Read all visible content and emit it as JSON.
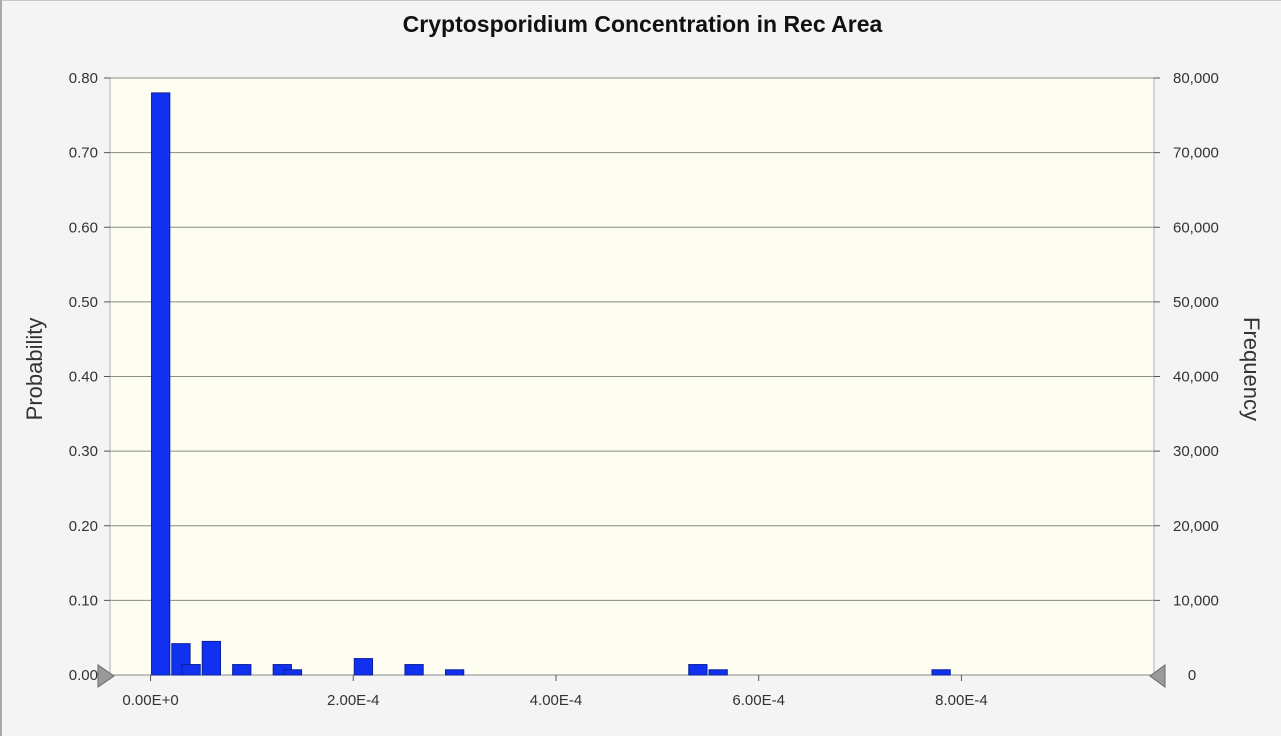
{
  "chart_data": {
    "type": "bar",
    "title": "Cryptosporidium Concentration in Rec Area",
    "xlabel": "",
    "ylabel": "Probability",
    "y2label": "Frequency",
    "xlim": [
      -4e-05,
      0.00099
    ],
    "ylim": [
      0,
      0.8
    ],
    "y2lim": [
      0,
      80000
    ],
    "bin_width": 2e-05,
    "x_ticks": [
      {
        "value": 0,
        "label": "0.00E+0"
      },
      {
        "value": 0.0002,
        "label": "2.00E-4"
      },
      {
        "value": 0.0004,
        "label": "4.00E-4"
      },
      {
        "value": 0.0006,
        "label": "6.00E-4"
      },
      {
        "value": 0.0008,
        "label": "8.00E-4"
      }
    ],
    "y_ticks": [
      {
        "value": 0,
        "label": "0.00"
      },
      {
        "value": 0.1,
        "label": "0.10"
      },
      {
        "value": 0.2,
        "label": "0.20"
      },
      {
        "value": 0.3,
        "label": "0.30"
      },
      {
        "value": 0.4,
        "label": "0.40"
      },
      {
        "value": 0.5,
        "label": "0.50"
      },
      {
        "value": 0.6,
        "label": "0.60"
      },
      {
        "value": 0.7,
        "label": "0.70"
      },
      {
        "value": 0.8,
        "label": "0.80"
      }
    ],
    "y2_ticks": [
      {
        "value": 0,
        "label": "0"
      },
      {
        "value": 10000,
        "label": "10,000"
      },
      {
        "value": 20000,
        "label": "20,000"
      },
      {
        "value": 30000,
        "label": "30,000"
      },
      {
        "value": 40000,
        "label": "40,000"
      },
      {
        "value": 50000,
        "label": "50,000"
      },
      {
        "value": 60000,
        "label": "60,000"
      },
      {
        "value": 70000,
        "label": "70,000"
      },
      {
        "value": 80000,
        "label": "80,000"
      }
    ],
    "series": [
      {
        "x": [
          0.0,
          2e-05,
          3e-05,
          5e-05,
          8e-05,
          0.00012,
          0.00013,
          0.0002,
          0.00025,
          0.00029,
          0.00053,
          0.00055,
          0.00077
        ],
        "values": [
          0.78,
          0.042,
          0.014,
          0.045,
          0.014,
          0.014,
          0.007,
          0.022,
          0.014,
          0.007,
          0.014,
          0.007,
          0.007
        ]
      }
    ],
    "grid": true,
    "colors": {
      "bar": "#1032f0",
      "plot_background": "#fdfdf1",
      "grid": "#8a8a8a",
      "frame_background": "#f4f4f4",
      "marker": "#909090"
    }
  }
}
